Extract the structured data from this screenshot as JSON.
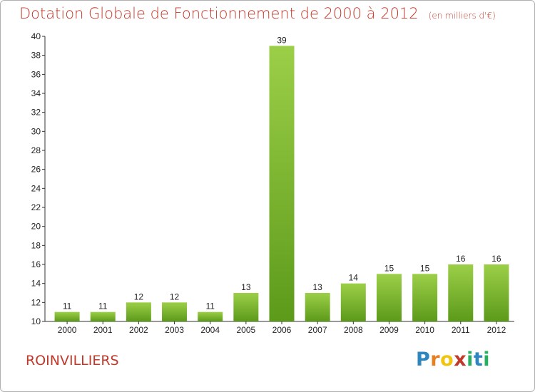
{
  "title": "Dotation Globale de Fonctionnement de 2000 à 2012",
  "subtitle": "(en milliers d'€)",
  "commune": "ROINVILLIERS",
  "brand": {
    "letters": [
      "P",
      "r",
      "o",
      "x",
      "i",
      "t",
      "i"
    ],
    "colors": [
      "#2e86c1",
      "#e67e22",
      "#f1c40f",
      "#c0392b",
      "#27ae60",
      "#2e86c1",
      "#27ae60"
    ]
  },
  "colors": {
    "bar_top": "#9ccf48",
    "bar_bottom": "#5c9a1a",
    "title": "#c0392b"
  },
  "chart_data": {
    "type": "bar",
    "title": "Dotation Globale de Fonctionnement de 2000 à 2012",
    "xlabel": "",
    "ylabel": "",
    "categories": [
      "2000",
      "2001",
      "2002",
      "2003",
      "2004",
      "2005",
      "2006",
      "2007",
      "2008",
      "2009",
      "2010",
      "2011",
      "2012"
    ],
    "values": [
      11,
      11,
      12,
      12,
      11,
      13,
      39,
      13,
      14,
      15,
      15,
      16,
      16
    ],
    "ylim": [
      10,
      40
    ],
    "yticks": [
      10,
      12,
      14,
      16,
      18,
      20,
      22,
      24,
      26,
      28,
      30,
      32,
      34,
      36,
      38,
      40
    ],
    "grid": false,
    "data_labels": true
  }
}
